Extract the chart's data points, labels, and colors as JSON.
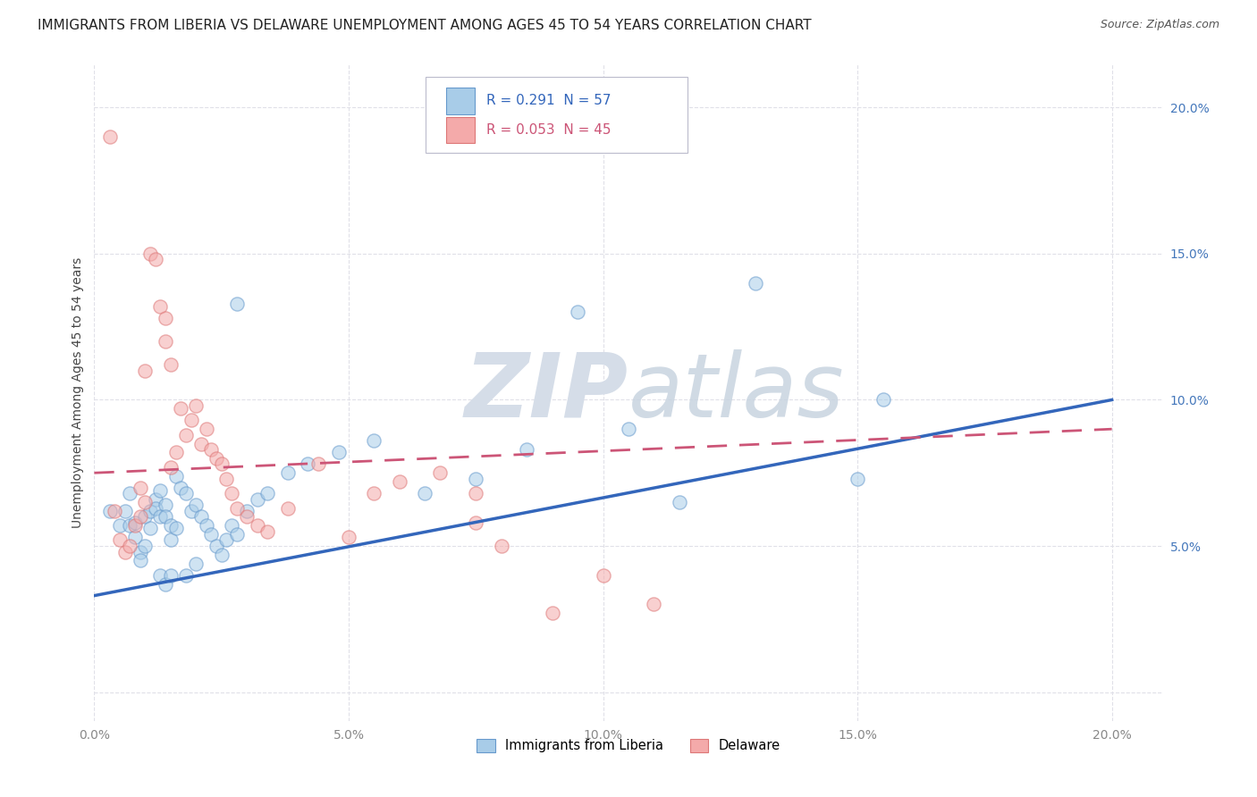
{
  "title": "IMMIGRANTS FROM LIBERIA VS DELAWARE UNEMPLOYMENT AMONG AGES 45 TO 54 YEARS CORRELATION CHART",
  "source": "Source: ZipAtlas.com",
  "ylabel": "Unemployment Among Ages 45 to 54 years",
  "xlim": [
    0.0,
    0.21
  ],
  "ylim": [
    -0.01,
    0.215
  ],
  "xticks": [
    0.0,
    0.05,
    0.1,
    0.15,
    0.2
  ],
  "yticks": [
    0.0,
    0.05,
    0.1,
    0.15,
    0.2
  ],
  "xtick_labels": [
    "0.0%",
    "5.0%",
    "10.0%",
    "15.0%",
    "20.0%"
  ],
  "ytick_labels": [
    "",
    "5.0%",
    "10.0%",
    "15.0%",
    "20.0%"
  ],
  "series1_label": "Immigrants from Liberia",
  "series1_R": "0.291",
  "series1_N": "57",
  "series1_color": "#a8cce8",
  "series2_label": "Delaware",
  "series2_R": "0.053",
  "series2_N": "45",
  "series2_color": "#f4aaaa",
  "series1_edge": "#6699cc",
  "series2_edge": "#dd7777",
  "watermark_color": "#d5dde8",
  "blue_scatter_x": [
    0.003,
    0.005,
    0.006,
    0.007,
    0.007,
    0.008,
    0.008,
    0.009,
    0.009,
    0.01,
    0.01,
    0.011,
    0.011,
    0.012,
    0.012,
    0.013,
    0.013,
    0.014,
    0.014,
    0.015,
    0.015,
    0.016,
    0.016,
    0.017,
    0.018,
    0.019,
    0.02,
    0.021,
    0.022,
    0.023,
    0.024,
    0.025,
    0.026,
    0.027,
    0.028,
    0.03,
    0.032,
    0.034,
    0.038,
    0.042,
    0.048,
    0.055,
    0.065,
    0.075,
    0.085,
    0.095,
    0.105,
    0.115,
    0.13,
    0.155,
    0.013,
    0.014,
    0.015,
    0.018,
    0.02,
    0.028,
    0.15
  ],
  "blue_scatter_y": [
    0.062,
    0.057,
    0.062,
    0.068,
    0.057,
    0.058,
    0.053,
    0.048,
    0.045,
    0.05,
    0.06,
    0.056,
    0.062,
    0.066,
    0.063,
    0.069,
    0.06,
    0.064,
    0.06,
    0.057,
    0.052,
    0.056,
    0.074,
    0.07,
    0.068,
    0.062,
    0.064,
    0.06,
    0.057,
    0.054,
    0.05,
    0.047,
    0.052,
    0.057,
    0.054,
    0.062,
    0.066,
    0.068,
    0.075,
    0.078,
    0.082,
    0.086,
    0.068,
    0.073,
    0.083,
    0.13,
    0.09,
    0.065,
    0.14,
    0.1,
    0.04,
    0.037,
    0.04,
    0.04,
    0.044,
    0.133,
    0.073
  ],
  "pink_scatter_x": [
    0.003,
    0.004,
    0.005,
    0.006,
    0.007,
    0.008,
    0.009,
    0.009,
    0.01,
    0.01,
    0.011,
    0.012,
    0.013,
    0.014,
    0.014,
    0.015,
    0.015,
    0.016,
    0.017,
    0.018,
    0.019,
    0.02,
    0.021,
    0.022,
    0.023,
    0.024,
    0.025,
    0.026,
    0.027,
    0.028,
    0.03,
    0.032,
    0.034,
    0.038,
    0.044,
    0.05,
    0.055,
    0.06,
    0.068,
    0.075,
    0.08,
    0.09,
    0.1,
    0.11,
    0.075
  ],
  "pink_scatter_y": [
    0.19,
    0.062,
    0.052,
    0.048,
    0.05,
    0.057,
    0.07,
    0.06,
    0.065,
    0.11,
    0.15,
    0.148,
    0.132,
    0.128,
    0.12,
    0.112,
    0.077,
    0.082,
    0.097,
    0.088,
    0.093,
    0.098,
    0.085,
    0.09,
    0.083,
    0.08,
    0.078,
    0.073,
    0.068,
    0.063,
    0.06,
    0.057,
    0.055,
    0.063,
    0.078,
    0.053,
    0.068,
    0.072,
    0.075,
    0.058,
    0.05,
    0.027,
    0.04,
    0.03,
    0.068
  ],
  "blue_line_x": [
    0.0,
    0.2
  ],
  "blue_line_y": [
    0.033,
    0.1
  ],
  "pink_line_x": [
    0.0,
    0.2
  ],
  "pink_line_y": [
    0.075,
    0.09
  ],
  "grid_color": "#e0e0e8",
  "title_fontsize": 11,
  "axis_label_fontsize": 10,
  "tick_fontsize": 10,
  "scatter_size": 120,
  "scatter_alpha": 0.55,
  "scatter_lw": 1.0
}
